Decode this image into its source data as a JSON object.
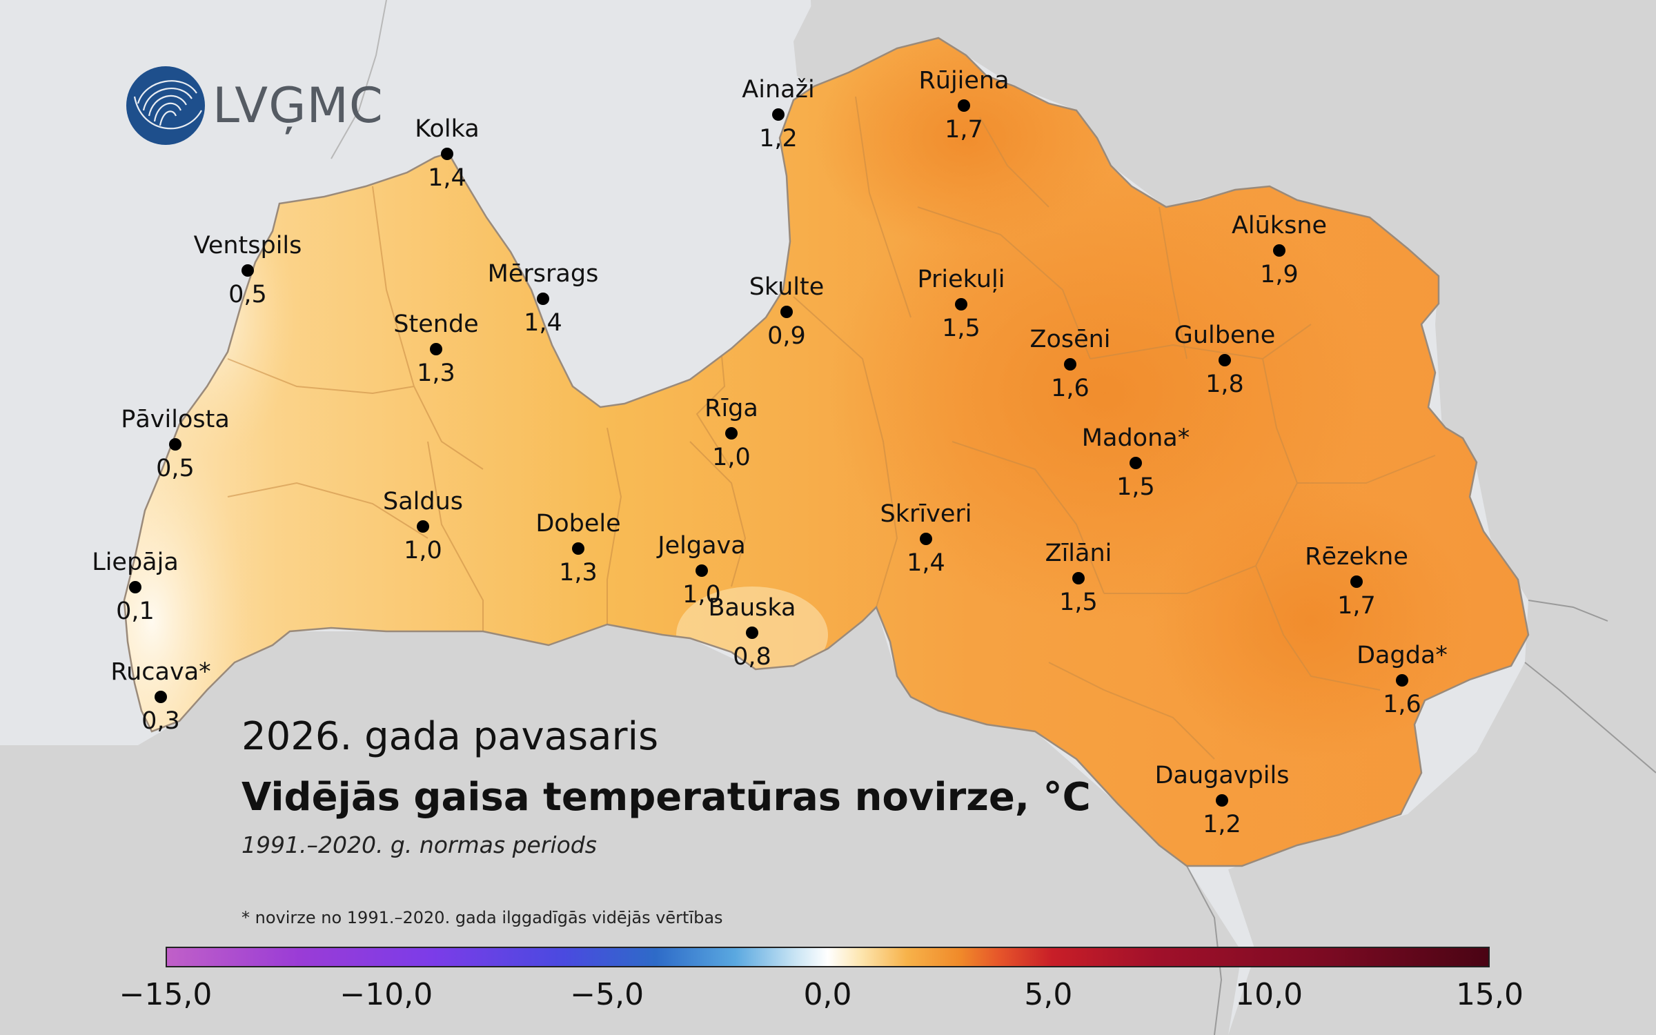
{
  "logo": {
    "text": "LVĢMC"
  },
  "title": {
    "season": "2026. gada pavasaris",
    "main": "Vidējās gaisa temperatūras novirze, °C",
    "subtitle": "1991.–2020. g. normas periods",
    "footnote": "* novirze no 1991.–2020. gada ilggadīgās vidējās vērtības"
  },
  "colors": {
    "sea": "#e4e6e9",
    "neighbour_land": "#d4d4d4",
    "marker": "#000000"
  },
  "stations": [
    {
      "name": "Ainaži",
      "value": "1,2"
    },
    {
      "name": "Rūjiena",
      "value": "1,7"
    },
    {
      "name": "Kolka",
      "value": "1,4"
    },
    {
      "name": "Ventspils",
      "value": "0,5"
    },
    {
      "name": "Mērsrags",
      "value": "1,4"
    },
    {
      "name": "Skulte",
      "value": "0,9"
    },
    {
      "name": "Priekuļi",
      "value": "1,5"
    },
    {
      "name": "Alūksne",
      "value": "1,9"
    },
    {
      "name": "Stende",
      "value": "1,3"
    },
    {
      "name": "Zosēni",
      "value": "1,6"
    },
    {
      "name": "Gulbene",
      "value": "1,8"
    },
    {
      "name": "Pāvilosta",
      "value": "0,5"
    },
    {
      "name": "Rīga",
      "value": "1,0"
    },
    {
      "name": "Madona*",
      "value": "1,5"
    },
    {
      "name": "Saldus",
      "value": "1,0"
    },
    {
      "name": "Dobele",
      "value": "1,3"
    },
    {
      "name": "Jelgava",
      "value": "1,0"
    },
    {
      "name": "Skrīveri",
      "value": "1,4"
    },
    {
      "name": "Zīlāni",
      "value": "1,5"
    },
    {
      "name": "Rēzekne",
      "value": "1,7"
    },
    {
      "name": "Liepāja",
      "value": "0,1"
    },
    {
      "name": "Bauska",
      "value": "0,8"
    },
    {
      "name": "Rucava*",
      "value": "0,3"
    },
    {
      "name": "Dagda*",
      "value": "1,6"
    },
    {
      "name": "Daugavpils",
      "value": "1,2"
    }
  ],
  "legend": {
    "min": -15,
    "max": 15,
    "ticks": [
      "−15,0",
      "−10,0",
      "−5,0",
      "0,0",
      "5,0",
      "10,0",
      "15,0"
    ],
    "tick_values": [
      -15,
      -10,
      -5,
      0,
      5,
      10,
      15
    ]
  }
}
